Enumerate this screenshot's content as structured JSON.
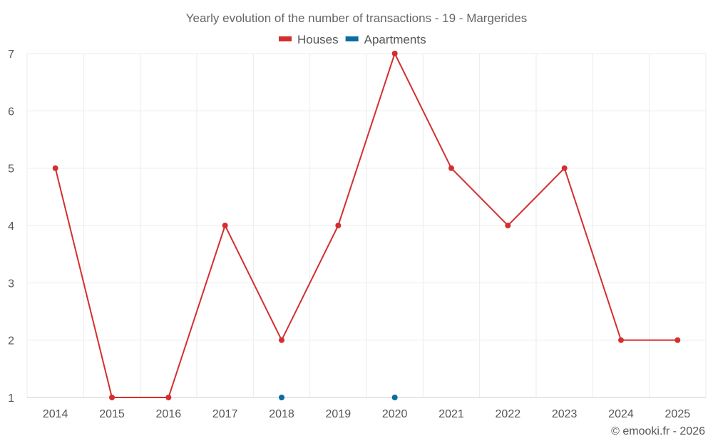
{
  "chart_data": {
    "type": "line",
    "title": "Yearly evolution of the number of transactions - 19 - Margerides",
    "xlabel": "",
    "ylabel": "",
    "categories": [
      "2014",
      "2015",
      "2016",
      "2017",
      "2018",
      "2019",
      "2020",
      "2021",
      "2022",
      "2023",
      "2024",
      "2025"
    ],
    "ylim": [
      1,
      7
    ],
    "yticks": [
      1,
      2,
      3,
      4,
      5,
      6,
      7
    ],
    "grid": true,
    "legend_position": "top-center",
    "series": [
      {
        "name": "Houses",
        "color": "#d32f2f",
        "values": [
          5,
          1,
          1,
          4,
          2,
          4,
          7,
          5,
          4,
          5,
          2,
          2
        ]
      },
      {
        "name": "Apartments",
        "color": "#0a6ca0",
        "values": [
          null,
          null,
          null,
          null,
          1,
          null,
          1,
          null,
          null,
          null,
          null,
          null
        ]
      }
    ],
    "credit": "© emooki.fr - 2026"
  }
}
